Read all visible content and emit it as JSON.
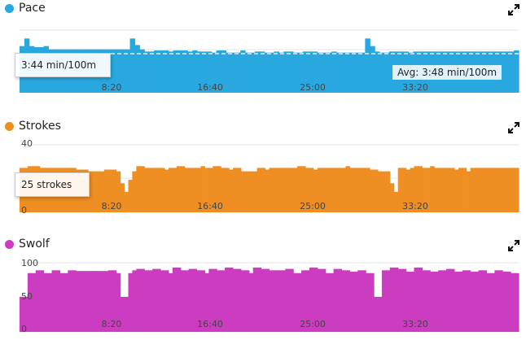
{
  "panels": [
    {
      "title": "Pace",
      "color": "#29a8e0",
      "icon": "expand-icon",
      "callout": "3:44 min/100m",
      "avg_label": "Avg: 3:48 min/100m",
      "y_ticks": []
    },
    {
      "title": "Strokes",
      "color": "#ee8e23",
      "icon": "expand-icon",
      "callout": "25 strokes",
      "y_ticks": [
        "40",
        "0"
      ]
    },
    {
      "title": "Swolf",
      "color": "#cc3cc0",
      "icon": "expand-icon",
      "callout": "",
      "y_ticks": [
        "100",
        "50",
        "0"
      ]
    }
  ],
  "chart_data": [
    {
      "type": "bar",
      "title": "Pace",
      "x_tick_labels": [
        "8:20",
        "16:40",
        "25:00",
        "33:20"
      ],
      "x_ticks_seconds": [
        500,
        1000,
        1500,
        2000
      ],
      "xlim_seconds": [
        0,
        2460
      ],
      "y_inverted": true,
      "ylim_seconds_per_100m": [
        195,
        300
      ],
      "avg_seconds_per_100m": 228,
      "values": [
        214,
        200,
        214,
        216,
        216,
        214,
        220,
        220,
        220,
        220,
        220,
        220,
        220,
        220,
        220,
        220,
        220,
        220,
        220,
        220,
        220,
        220,
        220,
        200,
        212,
        220,
        224,
        224,
        222,
        222,
        222,
        224,
        222,
        222,
        222,
        224,
        222,
        224,
        224,
        224,
        226,
        222,
        222,
        226,
        226,
        226,
        222,
        226,
        226,
        224,
        224,
        226,
        226,
        224,
        226,
        224,
        224,
        226,
        226,
        224,
        224,
        224,
        226,
        226,
        226,
        224,
        226,
        226,
        226,
        226,
        226,
        226,
        200,
        214,
        224,
        226,
        226,
        224,
        224,
        224,
        224,
        226,
        224,
        224,
        224,
        224,
        224,
        224,
        224,
        224,
        224,
        224,
        224,
        224,
        224,
        224,
        224,
        224,
        224,
        224,
        224,
        224,
        224,
        222
      ]
    },
    {
      "type": "bar",
      "title": "Strokes",
      "x_tick_labels": [
        "8:20",
        "16:40",
        "25:00",
        "33:20"
      ],
      "ylim": [
        0,
        40
      ],
      "values": [
        26,
        26,
        27,
        27,
        27,
        26,
        26,
        26,
        26,
        26,
        26,
        26,
        26,
        26,
        25,
        25,
        25,
        24,
        24,
        24,
        24,
        25,
        25,
        25,
        24,
        17,
        12,
        19,
        24,
        27,
        27,
        26,
        26,
        26,
        26,
        26,
        25,
        26,
        26,
        27,
        27,
        26,
        26,
        26,
        26,
        27,
        26,
        26,
        27,
        27,
        26,
        26,
        25,
        26,
        26,
        24,
        24,
        24,
        24,
        26,
        26,
        25,
        26,
        26,
        26,
        26,
        26,
        26,
        26,
        27,
        27,
        26,
        26,
        25,
        26,
        26,
        26,
        26,
        26,
        26,
        26,
        27,
        26,
        26,
        26,
        26,
        26,
        25,
        25,
        24,
        24,
        24,
        17,
        12,
        26,
        26,
        25,
        26,
        27,
        27,
        26,
        26,
        27,
        26,
        26,
        26,
        26,
        26,
        25,
        26,
        26,
        24,
        26,
        26,
        26,
        26,
        26,
        26,
        26,
        26,
        26,
        26,
        26,
        26
      ]
    },
    {
      "type": "bar",
      "title": "Swolf",
      "x_tick_labels": [
        "8:20",
        "16:40",
        "25:00",
        "33:20"
      ],
      "ylim": [
        0,
        100
      ],
      "values": [
        50,
        50,
        84,
        84,
        88,
        88,
        84,
        84,
        88,
        88,
        84,
        84,
        88,
        88,
        87,
        87,
        87,
        87,
        87,
        87,
        87,
        87,
        88,
        88,
        84,
        50,
        50,
        84,
        88,
        90,
        90,
        88,
        88,
        90,
        90,
        88,
        88,
        84,
        92,
        92,
        88,
        88,
        90,
        90,
        88,
        88,
        84,
        90,
        90,
        88,
        88,
        92,
        92,
        90,
        90,
        88,
        88,
        84,
        92,
        92,
        90,
        90,
        88,
        88,
        88,
        88,
        90,
        90,
        84,
        84,
        88,
        88,
        92,
        92,
        90,
        90,
        84,
        84,
        90,
        90,
        88,
        88,
        86,
        86,
        88,
        88,
        84,
        84,
        50,
        50,
        88,
        88,
        92,
        92,
        90,
        90,
        86,
        86,
        92,
        92,
        88,
        88,
        86,
        86,
        88,
        88,
        90,
        90,
        86,
        86,
        88,
        88,
        86,
        86,
        88,
        88,
        84,
        84,
        88,
        88,
        86,
        86,
        84,
        84
      ]
    }
  ]
}
